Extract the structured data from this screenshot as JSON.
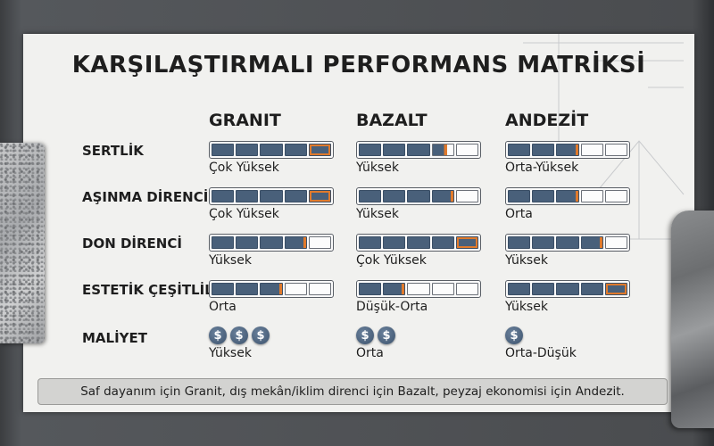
{
  "title": "KARŞILAŞTIRMALI PERFORMANS MATRİKSİ",
  "columns": [
    "GRANIT",
    "BAZALT",
    "ANDEZİT"
  ],
  "rows": [
    {
      "label": "SERTLİK",
      "cells": [
        {
          "level": 5,
          "text": "Çok Yüksek"
        },
        {
          "level": 3.5,
          "text": "Yüksek"
        },
        {
          "level": 3,
          "text": "Orta-Yüksek"
        }
      ]
    },
    {
      "label": "AŞINMA DİRENCİ",
      "cells": [
        {
          "level": 5,
          "text": "Çok Yüksek"
        },
        {
          "level": 4,
          "text": "Yüksek"
        },
        {
          "level": 3,
          "text": "Orta"
        }
      ]
    },
    {
      "label": "DON DİRENCİ",
      "cells": [
        {
          "level": 4,
          "text": "Yüksek"
        },
        {
          "level": 5,
          "text": "Çok Yüksek"
        },
        {
          "level": 4,
          "text": "Yüksek"
        }
      ]
    },
    {
      "label": "ESTETİK ÇEŞİTLİLİK",
      "cells": [
        {
          "level": 3,
          "text": "Orta"
        },
        {
          "level": 2,
          "text": "Düşük-Orta"
        },
        {
          "level": 5,
          "text": "Yüksek"
        }
      ]
    }
  ],
  "cost": {
    "label": "MALİYET",
    "icon": "dollar-coin-icon",
    "symbol": "$",
    "cells": [
      {
        "coins": 3,
        "text": "Yüksek"
      },
      {
        "coins": 2,
        "text": "Orta"
      },
      {
        "coins": 1,
        "text": "Orta-Düşük"
      }
    ]
  },
  "footer": "Saf dayanım için Granit, dış mekân/iklim direnci için Bazalt, peyzaj ekonomisi için Andezit.",
  "colors": {
    "filled": "#49607a",
    "accent": "#e07a2c",
    "empty": "#fcfcfc"
  }
}
